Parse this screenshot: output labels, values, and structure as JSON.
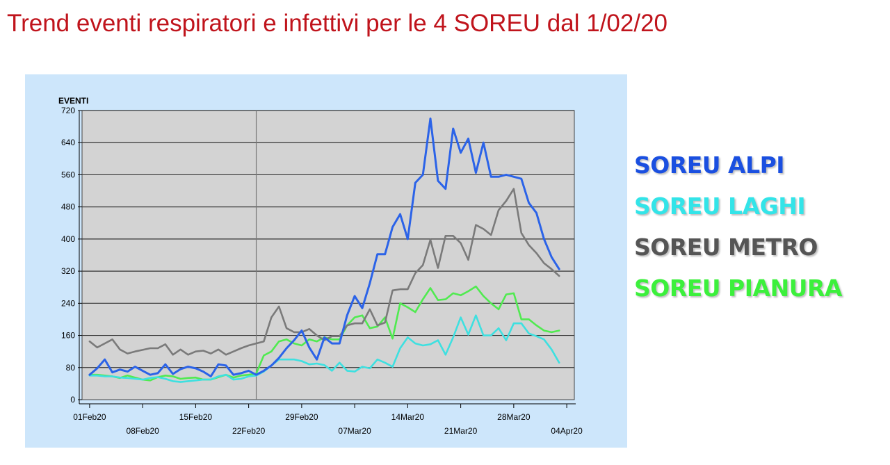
{
  "header": {
    "title": "Trend eventi respiratori e infettivi per le 4 SOREU dal 1/02/20"
  },
  "chart_data": {
    "type": "line",
    "title": "",
    "ylabel": "EVENTI",
    "xlabel": "",
    "ylim": [
      0,
      720
    ],
    "yticks": [
      0,
      80,
      160,
      240,
      320,
      400,
      480,
      560,
      640,
      720
    ],
    "xlim": [
      "2020-01-31",
      "2020-04-05"
    ],
    "xticks": [
      {
        "label": "01Feb20",
        "date": "2020-02-01",
        "row": 1
      },
      {
        "label": "08Feb20",
        "date": "2020-02-08",
        "row": 2
      },
      {
        "label": "15Feb20",
        "date": "2020-02-15",
        "row": 1
      },
      {
        "label": "22Feb20",
        "date": "2020-02-22",
        "row": 2
      },
      {
        "label": "29Feb20",
        "date": "2020-02-29",
        "row": 1
      },
      {
        "label": "07Mar20",
        "date": "2020-03-07",
        "row": 2
      },
      {
        "label": "14Mar20",
        "date": "2020-03-14",
        "row": 1
      },
      {
        "label": "21Mar20",
        "date": "2020-03-21",
        "row": 2
      },
      {
        "label": "28Mar20",
        "date": "2020-03-28",
        "row": 1
      },
      {
        "label": "04Apr20",
        "date": "2020-04-04",
        "row": 2
      }
    ],
    "reference_line": "2020-02-23",
    "grid": "horizontal",
    "legend_position": "right",
    "start_date": "2020-02-01",
    "series": [
      {
        "name": "SOREU ALPI",
        "color": "#2b63e8",
        "values": [
          62,
          78,
          100,
          68,
          75,
          70,
          82,
          72,
          62,
          66,
          88,
          64,
          76,
          82,
          78,
          70,
          58,
          88,
          85,
          62,
          66,
          72,
          62,
          72,
          85,
          104,
          128,
          148,
          172,
          130,
          100,
          155,
          140,
          140,
          210,
          258,
          228,
          290,
          362,
          362,
          430,
          462,
          400,
          540,
          560,
          700,
          545,
          525,
          675,
          615,
          650,
          565,
          640,
          555,
          555,
          560,
          555,
          550,
          490,
          465,
          400,
          355,
          325
        ]
      },
      {
        "name": "SOREU LAGHI",
        "color": "#3ee0e0",
        "values": [
          60,
          60,
          58,
          58,
          55,
          54,
          52,
          50,
          54,
          56,
          52,
          46,
          44,
          46,
          48,
          50,
          50,
          58,
          62,
          50,
          52,
          58,
          60,
          70,
          85,
          100,
          100,
          100,
          96,
          88,
          90,
          86,
          72,
          92,
          72,
          70,
          82,
          78,
          100,
          92,
          82,
          128,
          155,
          140,
          135,
          138,
          148,
          112,
          155,
          205,
          162,
          210,
          160,
          160,
          178,
          148,
          190,
          190,
          165,
          158,
          150,
          125,
          92
        ]
      },
      {
        "name": "SOREU METRO",
        "color": "#7a7a7a",
        "values": [
          145,
          130,
          140,
          150,
          125,
          115,
          120,
          124,
          128,
          128,
          138,
          112,
          125,
          112,
          120,
          122,
          115,
          125,
          112,
          120,
          128,
          135,
          140,
          145,
          205,
          232,
          178,
          168,
          168,
          176,
          160,
          148,
          158,
          158,
          185,
          190,
          190,
          225,
          185,
          192,
          272,
          275,
          275,
          315,
          335,
          398,
          328,
          408,
          408,
          390,
          348,
          435,
          425,
          410,
          472,
          495,
          525,
          415,
          385,
          365,
          340,
          325,
          308
        ]
      },
      {
        "name": "SOREU PIANURA",
        "color": "#50ea50",
        "values": [
          62,
          62,
          60,
          58,
          54,
          60,
          55,
          50,
          48,
          56,
          60,
          58,
          52,
          54,
          55,
          50,
          50,
          56,
          62,
          55,
          60,
          62,
          65,
          110,
          120,
          145,
          150,
          140,
          135,
          150,
          145,
          155,
          150,
          150,
          185,
          205,
          210,
          178,
          182,
          205,
          152,
          240,
          230,
          218,
          250,
          278,
          248,
          250,
          265,
          260,
          270,
          282,
          258,
          240,
          225,
          262,
          265,
          200,
          200,
          185,
          172,
          168,
          172
        ]
      }
    ]
  }
}
